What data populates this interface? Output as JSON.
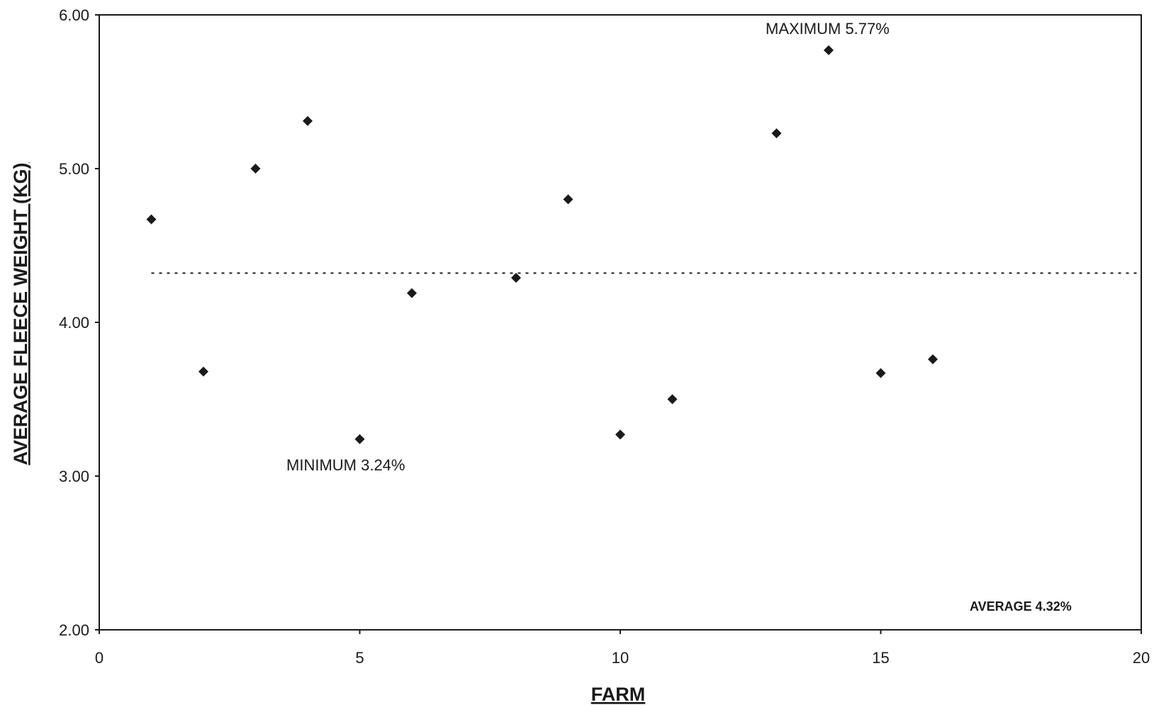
{
  "chart_data": {
    "type": "scatter",
    "xlabel": "FARM",
    "ylabel": "AVERAGE FLEECE WEIGHT (KG)",
    "xlim": [
      0,
      20
    ],
    "ylim": [
      2.0,
      6.0
    ],
    "x_ticks": [
      "0",
      "5",
      "10",
      "15",
      "20"
    ],
    "y_ticks": [
      "2.00",
      "3.00",
      "4.00",
      "5.00",
      "6.00"
    ],
    "grid": false,
    "legend": "none",
    "marker": "diamond",
    "marker_color": "#1a1a1a",
    "points": [
      {
        "x": 1,
        "y": 4.67
      },
      {
        "x": 2,
        "y": 3.68
      },
      {
        "x": 3,
        "y": 5.0
      },
      {
        "x": 4,
        "y": 5.31
      },
      {
        "x": 5,
        "y": 3.24
      },
      {
        "x": 6,
        "y": 4.19
      },
      {
        "x": 8,
        "y": 4.29
      },
      {
        "x": 9,
        "y": 4.8
      },
      {
        "x": 10,
        "y": 3.27
      },
      {
        "x": 11,
        "y": 3.5
      },
      {
        "x": 13,
        "y": 5.23
      },
      {
        "x": 14,
        "y": 5.77
      },
      {
        "x": 15,
        "y": 3.67
      },
      {
        "x": 16,
        "y": 3.76
      }
    ],
    "average_line": {
      "value": 4.32,
      "x_from": 1,
      "x_to": 20,
      "style": "dotted"
    },
    "annotations": {
      "maximum": "MAXIMUM 5.77%",
      "minimum": "MINIMUM 3.24%",
      "average": "AVERAGE 4.32%"
    }
  }
}
